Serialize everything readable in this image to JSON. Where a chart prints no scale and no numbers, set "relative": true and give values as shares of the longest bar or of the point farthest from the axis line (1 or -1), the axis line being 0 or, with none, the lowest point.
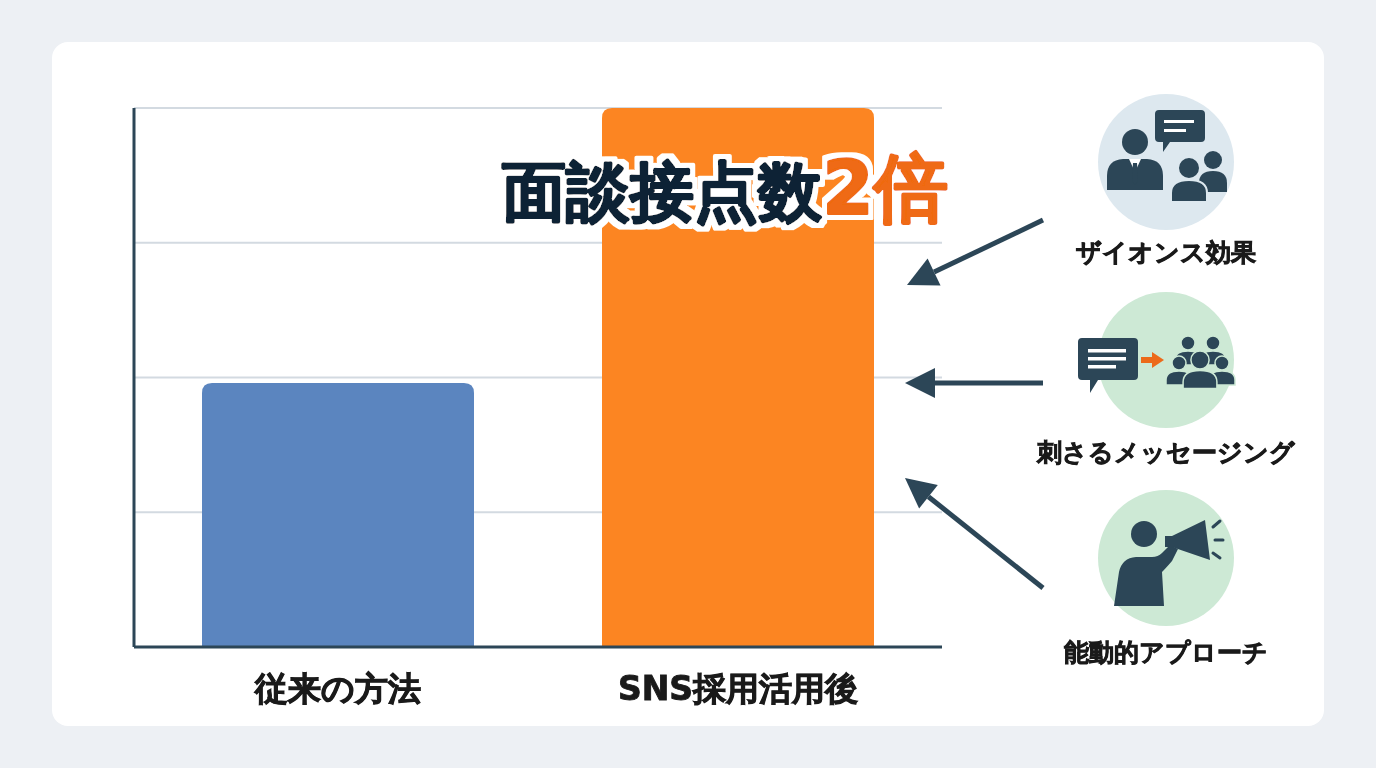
{
  "chart_data": {
    "type": "bar",
    "title": "面談接点数2倍",
    "categories": [
      "従来の方法",
      "SNS採用活用後"
    ],
    "values": [
      0.49,
      1
    ],
    "colors": [
      "#5b85bf",
      "#fc8522"
    ],
    "relative": true,
    "grid": "y",
    "annotations": [
      "ザイオンス効果",
      "刺さるメッセージング",
      "能動的アプローチ"
    ]
  }
}
